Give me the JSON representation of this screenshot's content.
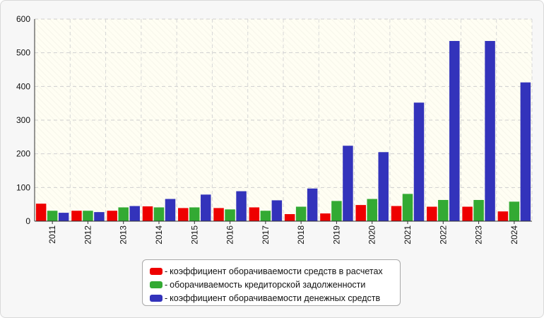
{
  "chart_data": {
    "type": "bar",
    "categories": [
      "2011",
      "2012",
      "2013",
      "2014",
      "2015",
      "2016",
      "2017",
      "2018",
      "2019",
      "2020",
      "2021",
      "2022",
      "2023",
      "2024"
    ],
    "series": [
      {
        "name": "коэффициент оборачиваемости средств в расчетах",
        "color": "#ee0000",
        "values": [
          52,
          31,
          31,
          44,
          39,
          39,
          41,
          21,
          23,
          48,
          45,
          43,
          43,
          29
        ]
      },
      {
        "name": "оборачиваемость кредиторской задолженности",
        "color": "#33aa33",
        "values": [
          31,
          31,
          41,
          41,
          41,
          35,
          31,
          43,
          60,
          66,
          81,
          63,
          63,
          58
        ]
      },
      {
        "name": "коэффициент оборачиваемости денежных средств",
        "color": "#3333bb",
        "values": [
          25,
          27,
          45,
          66,
          79,
          89,
          62,
          97,
          224,
          205,
          352,
          535,
          535,
          412
        ]
      }
    ],
    "y_ticks": [
      "0",
      "100",
      "200",
      "300",
      "400",
      "500",
      "600"
    ],
    "ylim": [
      0,
      600
    ],
    "grid": true,
    "legend_position": "bottom-center",
    "legend_prefix": "-"
  }
}
